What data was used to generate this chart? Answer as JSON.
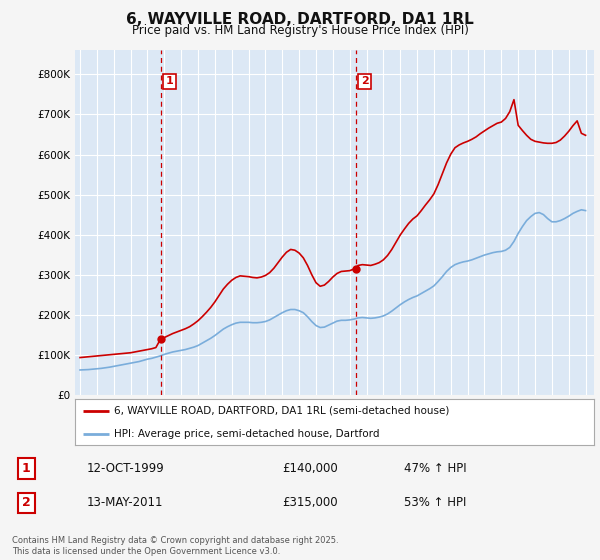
{
  "title": "6, WAYVILLE ROAD, DARTFORD, DA1 1RL",
  "subtitle": "Price paid vs. HM Land Registry's House Price Index (HPI)",
  "title_fontsize": 11,
  "subtitle_fontsize": 8.5,
  "background_color": "#f5f5f5",
  "plot_bg_color": "#dce8f5",
  "grid_color": "#ffffff",
  "ylabel_ticks": [
    "£0",
    "£100K",
    "£200K",
    "£300K",
    "£400K",
    "£500K",
    "£600K",
    "£700K",
    "£800K"
  ],
  "ytick_vals": [
    0,
    100000,
    200000,
    300000,
    400000,
    500000,
    600000,
    700000,
    800000
  ],
  "ylim": [
    0,
    860000
  ],
  "xlim_start": 1994.7,
  "xlim_end": 2025.5,
  "vline1_x": 1999.79,
  "vline2_x": 2011.37,
  "sale1_marker_x": 1999.79,
  "sale1_marker_y": 140000,
  "sale2_marker_x": 2011.37,
  "sale2_marker_y": 315000,
  "sale1_label": "1",
  "sale2_label": "2",
  "sale1_date": "12-OCT-1999",
  "sale1_price": "£140,000",
  "sale1_hpi": "47% ↑ HPI",
  "sale2_date": "13-MAY-2011",
  "sale2_price": "£315,000",
  "sale2_hpi": "53% ↑ HPI",
  "legend1_label": "6, WAYVILLE ROAD, DARTFORD, DA1 1RL (semi-detached house)",
  "legend2_label": "HPI: Average price, semi-detached house, Dartford",
  "footer": "Contains HM Land Registry data © Crown copyright and database right 2025.\nThis data is licensed under the Open Government Licence v3.0.",
  "red_line_color": "#cc0000",
  "blue_line_color": "#7aaddb",
  "vline_color": "#cc0000",
  "hpi_x": [
    1995.0,
    1995.25,
    1995.5,
    1995.75,
    1996.0,
    1996.25,
    1996.5,
    1996.75,
    1997.0,
    1997.25,
    1997.5,
    1997.75,
    1998.0,
    1998.25,
    1998.5,
    1998.75,
    1999.0,
    1999.25,
    1999.5,
    1999.75,
    2000.0,
    2000.25,
    2000.5,
    2000.75,
    2001.0,
    2001.25,
    2001.5,
    2001.75,
    2002.0,
    2002.25,
    2002.5,
    2002.75,
    2003.0,
    2003.25,
    2003.5,
    2003.75,
    2004.0,
    2004.25,
    2004.5,
    2004.75,
    2005.0,
    2005.25,
    2005.5,
    2005.75,
    2006.0,
    2006.25,
    2006.5,
    2006.75,
    2007.0,
    2007.25,
    2007.5,
    2007.75,
    2008.0,
    2008.25,
    2008.5,
    2008.75,
    2009.0,
    2009.25,
    2009.5,
    2009.75,
    2010.0,
    2010.25,
    2010.5,
    2010.75,
    2011.0,
    2011.25,
    2011.5,
    2011.75,
    2012.0,
    2012.25,
    2012.5,
    2012.75,
    2013.0,
    2013.25,
    2013.5,
    2013.75,
    2014.0,
    2014.25,
    2014.5,
    2014.75,
    2015.0,
    2015.25,
    2015.5,
    2015.75,
    2016.0,
    2016.25,
    2016.5,
    2016.75,
    2017.0,
    2017.25,
    2017.5,
    2017.75,
    2018.0,
    2018.25,
    2018.5,
    2018.75,
    2019.0,
    2019.25,
    2019.5,
    2019.75,
    2020.0,
    2020.25,
    2020.5,
    2020.75,
    2021.0,
    2021.25,
    2021.5,
    2021.75,
    2022.0,
    2022.25,
    2022.5,
    2022.75,
    2023.0,
    2023.25,
    2023.5,
    2023.75,
    2024.0,
    2024.25,
    2024.5,
    2024.75,
    2025.0
  ],
  "hpi_y": [
    62000,
    62500,
    63000,
    64000,
    65000,
    66000,
    67500,
    69000,
    71000,
    73000,
    75000,
    77000,
    79000,
    81000,
    83000,
    86000,
    89000,
    91000,
    94000,
    97000,
    101000,
    104000,
    107000,
    109000,
    111000,
    113000,
    116000,
    119000,
    123000,
    129000,
    135000,
    141000,
    148000,
    156000,
    164000,
    170000,
    175000,
    179000,
    181000,
    181000,
    181000,
    180000,
    180000,
    181000,
    183000,
    187000,
    193000,
    199000,
    205000,
    210000,
    213000,
    213000,
    210000,
    205000,
    195000,
    183000,
    173000,
    168000,
    169000,
    174000,
    179000,
    184000,
    186000,
    186000,
    187000,
    189000,
    192000,
    193000,
    192000,
    191000,
    192000,
    194000,
    197000,
    202000,
    209000,
    217000,
    225000,
    232000,
    238000,
    243000,
    247000,
    253000,
    259000,
    265000,
    272000,
    283000,
    295000,
    308000,
    318000,
    325000,
    329000,
    332000,
    334000,
    337000,
    341000,
    345000,
    349000,
    352000,
    355000,
    357000,
    358000,
    361000,
    368000,
    383000,
    403000,
    420000,
    435000,
    445000,
    453000,
    455000,
    450000,
    440000,
    432000,
    432000,
    435000,
    440000,
    446000,
    453000,
    458000,
    462000,
    460000
  ],
  "red_x": [
    1995.0,
    1995.25,
    1995.5,
    1995.75,
    1996.0,
    1996.25,
    1996.5,
    1996.75,
    1997.0,
    1997.25,
    1997.5,
    1997.75,
    1998.0,
    1998.25,
    1998.5,
    1998.75,
    1999.0,
    1999.25,
    1999.5,
    1999.79,
    2000.0,
    2000.25,
    2000.5,
    2000.75,
    2001.0,
    2001.25,
    2001.5,
    2001.75,
    2002.0,
    2002.25,
    2002.5,
    2002.75,
    2003.0,
    2003.25,
    2003.5,
    2003.75,
    2004.0,
    2004.25,
    2004.5,
    2004.75,
    2005.0,
    2005.25,
    2005.5,
    2005.75,
    2006.0,
    2006.25,
    2006.5,
    2006.75,
    2007.0,
    2007.25,
    2007.5,
    2007.75,
    2008.0,
    2008.25,
    2008.5,
    2008.75,
    2009.0,
    2009.25,
    2009.5,
    2009.75,
    2010.0,
    2010.25,
    2010.5,
    2010.75,
    2011.0,
    2011.25,
    2011.37,
    2011.5,
    2011.75,
    2012.0,
    2012.25,
    2012.5,
    2012.75,
    2013.0,
    2013.25,
    2013.5,
    2013.75,
    2014.0,
    2014.25,
    2014.5,
    2014.75,
    2015.0,
    2015.25,
    2015.5,
    2015.75,
    2016.0,
    2016.25,
    2016.5,
    2016.75,
    2017.0,
    2017.25,
    2017.5,
    2017.75,
    2018.0,
    2018.25,
    2018.5,
    2018.75,
    2019.0,
    2019.25,
    2019.5,
    2019.75,
    2020.0,
    2020.25,
    2020.5,
    2020.75,
    2021.0,
    2021.25,
    2021.5,
    2021.75,
    2022.0,
    2022.25,
    2022.5,
    2022.75,
    2023.0,
    2023.25,
    2023.5,
    2023.75,
    2024.0,
    2024.25,
    2024.5,
    2024.75,
    2025.0
  ],
  "red_y": [
    93000,
    94000,
    95000,
    96000,
    97000,
    98000,
    99000,
    100000,
    101000,
    102000,
    103000,
    104000,
    105000,
    107000,
    109000,
    111000,
    113000,
    115000,
    118000,
    140000,
    143000,
    148000,
    153000,
    157000,
    161000,
    165000,
    170000,
    177000,
    185000,
    195000,
    206000,
    218000,
    232000,
    248000,
    264000,
    276000,
    286000,
    293000,
    297000,
    296000,
    295000,
    293000,
    292000,
    294000,
    298000,
    305000,
    316000,
    330000,
    344000,
    356000,
    363000,
    361000,
    354000,
    342000,
    323000,
    300000,
    280000,
    271000,
    274000,
    283000,
    294000,
    303000,
    308000,
    309000,
    310000,
    314000,
    315000,
    323000,
    325000,
    324000,
    323000,
    326000,
    330000,
    337000,
    348000,
    363000,
    381000,
    399000,
    414000,
    428000,
    439000,
    447000,
    460000,
    474000,
    487000,
    502000,
    525000,
    552000,
    579000,
    601000,
    617000,
    624000,
    629000,
    633000,
    638000,
    644000,
    652000,
    659000,
    666000,
    672000,
    678000,
    681000,
    690000,
    707000,
    737000,
    673000,
    660000,
    648000,
    638000,
    633000,
    631000,
    629000,
    628000,
    628000,
    630000,
    636000,
    646000,
    658000,
    672000,
    684000,
    653000,
    648000
  ]
}
